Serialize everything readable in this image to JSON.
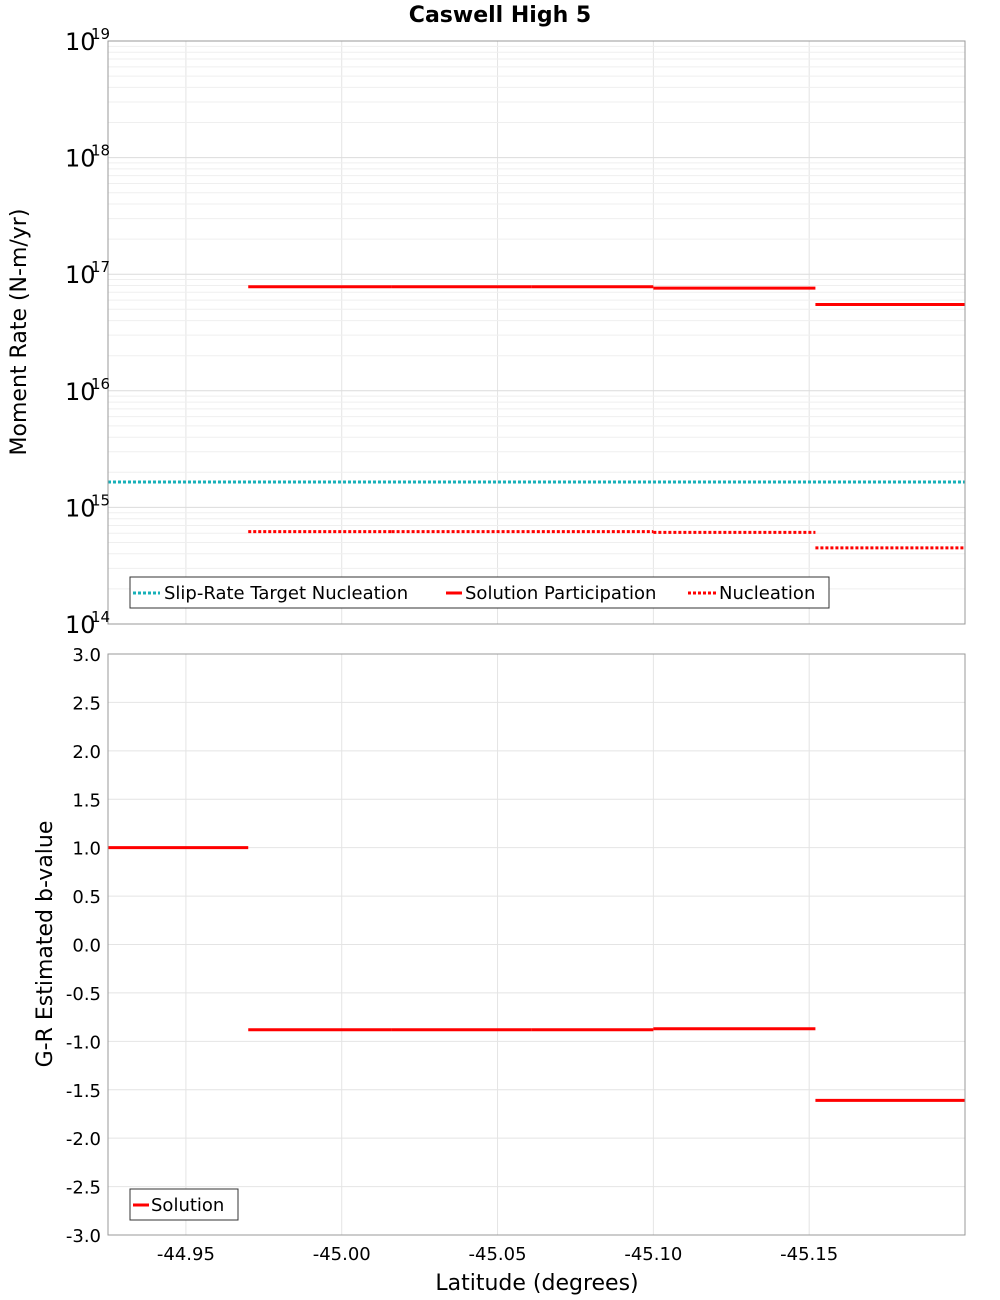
{
  "chart_data": [
    {
      "type": "line",
      "title": "Caswell High 5",
      "ylabel": "Moment Rate (N-m/yr)",
      "yscale": "log",
      "ylim": [
        100000000000000.0,
        1e+19
      ],
      "xlim": [
        -44.925,
        -45.2
      ],
      "x_ticks": [
        -44.95,
        -45.0,
        -45.05,
        -45.1,
        -45.15
      ],
      "y_ticks": [
        {
          "base": "10",
          "exp": "14",
          "value": 100000000000000.0
        },
        {
          "base": "10",
          "exp": "15",
          "value": 1000000000000000.0
        },
        {
          "base": "10",
          "exp": "16",
          "value": 1e+16
        },
        {
          "base": "10",
          "exp": "17",
          "value": 1e+17
        },
        {
          "base": "10",
          "exp": "18",
          "value": 1e+18
        },
        {
          "base": "10",
          "exp": "19",
          "value": 1e+19
        }
      ],
      "series": [
        {
          "name": "Slip-Rate Target Nucleation",
          "color": "#17b0b8",
          "style": "dotted",
          "segments": [
            {
              "x0": -44.925,
              "x1": -45.2,
              "y": 1650000000000000.0
            }
          ]
        },
        {
          "name": "Solution Participation",
          "color": "#ff0000",
          "style": "solid",
          "segments": [
            {
              "x0": -44.97,
              "x1": -45.016,
              "y": 7.8e+16
            },
            {
              "x0": -45.016,
              "x1": -45.061,
              "y": 7.8e+16
            },
            {
              "x0": -45.061,
              "x1": -45.1,
              "y": 7.8e+16
            },
            {
              "x0": -45.1,
              "x1": -45.152,
              "y": 7.6e+16
            },
            {
              "x0": -45.152,
              "x1": -45.2,
              "y": 5.5e+16
            }
          ]
        },
        {
          "name": "Nucleation",
          "color": "#ff0000",
          "style": "dotted",
          "segments": [
            {
              "x0": -44.97,
              "x1": -45.016,
              "y": 620000000000000.0
            },
            {
              "x0": -45.016,
              "x1": -45.061,
              "y": 620000000000000.0
            },
            {
              "x0": -45.061,
              "x1": -45.1,
              "y": 620000000000000.0
            },
            {
              "x0": -45.1,
              "x1": -45.152,
              "y": 610000000000000.0
            },
            {
              "x0": -45.152,
              "x1": -45.2,
              "y": 450000000000000.0
            }
          ]
        }
      ]
    },
    {
      "type": "line",
      "xlabel": "Latitude (degrees)",
      "ylabel": "G-R Estimated b-value",
      "ylim": [
        -3.0,
        3.0
      ],
      "xlim": [
        -44.925,
        -45.2
      ],
      "x_ticks": [
        -44.95,
        -45.0,
        -45.05,
        -45.1,
        -45.15
      ],
      "x_tick_labels": [
        "-44.95",
        "-45.00",
        "-45.05",
        "-45.10",
        "-45.15"
      ],
      "y_ticks": [
        3.0,
        2.5,
        2.0,
        1.5,
        1.0,
        0.5,
        0.0,
        -0.5,
        -1.0,
        -1.5,
        -2.0,
        -2.5,
        -3.0
      ],
      "y_tick_labels": [
        "3.0",
        "2.5",
        "2.0",
        "1.5",
        "1.0",
        "0.5",
        "0.0",
        "-0.5",
        "-1.0",
        "-1.5",
        "-2.0",
        "-2.5",
        "-3.0"
      ],
      "series": [
        {
          "name": "Solution",
          "color": "#ff0000",
          "style": "solid",
          "segments": [
            {
              "x0": -44.925,
              "x1": -44.97,
              "y": 1.0
            },
            {
              "x0": -44.97,
              "x1": -45.016,
              "y": -0.88
            },
            {
              "x0": -45.016,
              "x1": -45.061,
              "y": -0.88
            },
            {
              "x0": -45.061,
              "x1": -45.1,
              "y": -0.88
            },
            {
              "x0": -45.1,
              "x1": -45.152,
              "y": -0.87
            },
            {
              "x0": -45.152,
              "x1": -45.2,
              "y": -1.61
            }
          ]
        }
      ]
    }
  ]
}
